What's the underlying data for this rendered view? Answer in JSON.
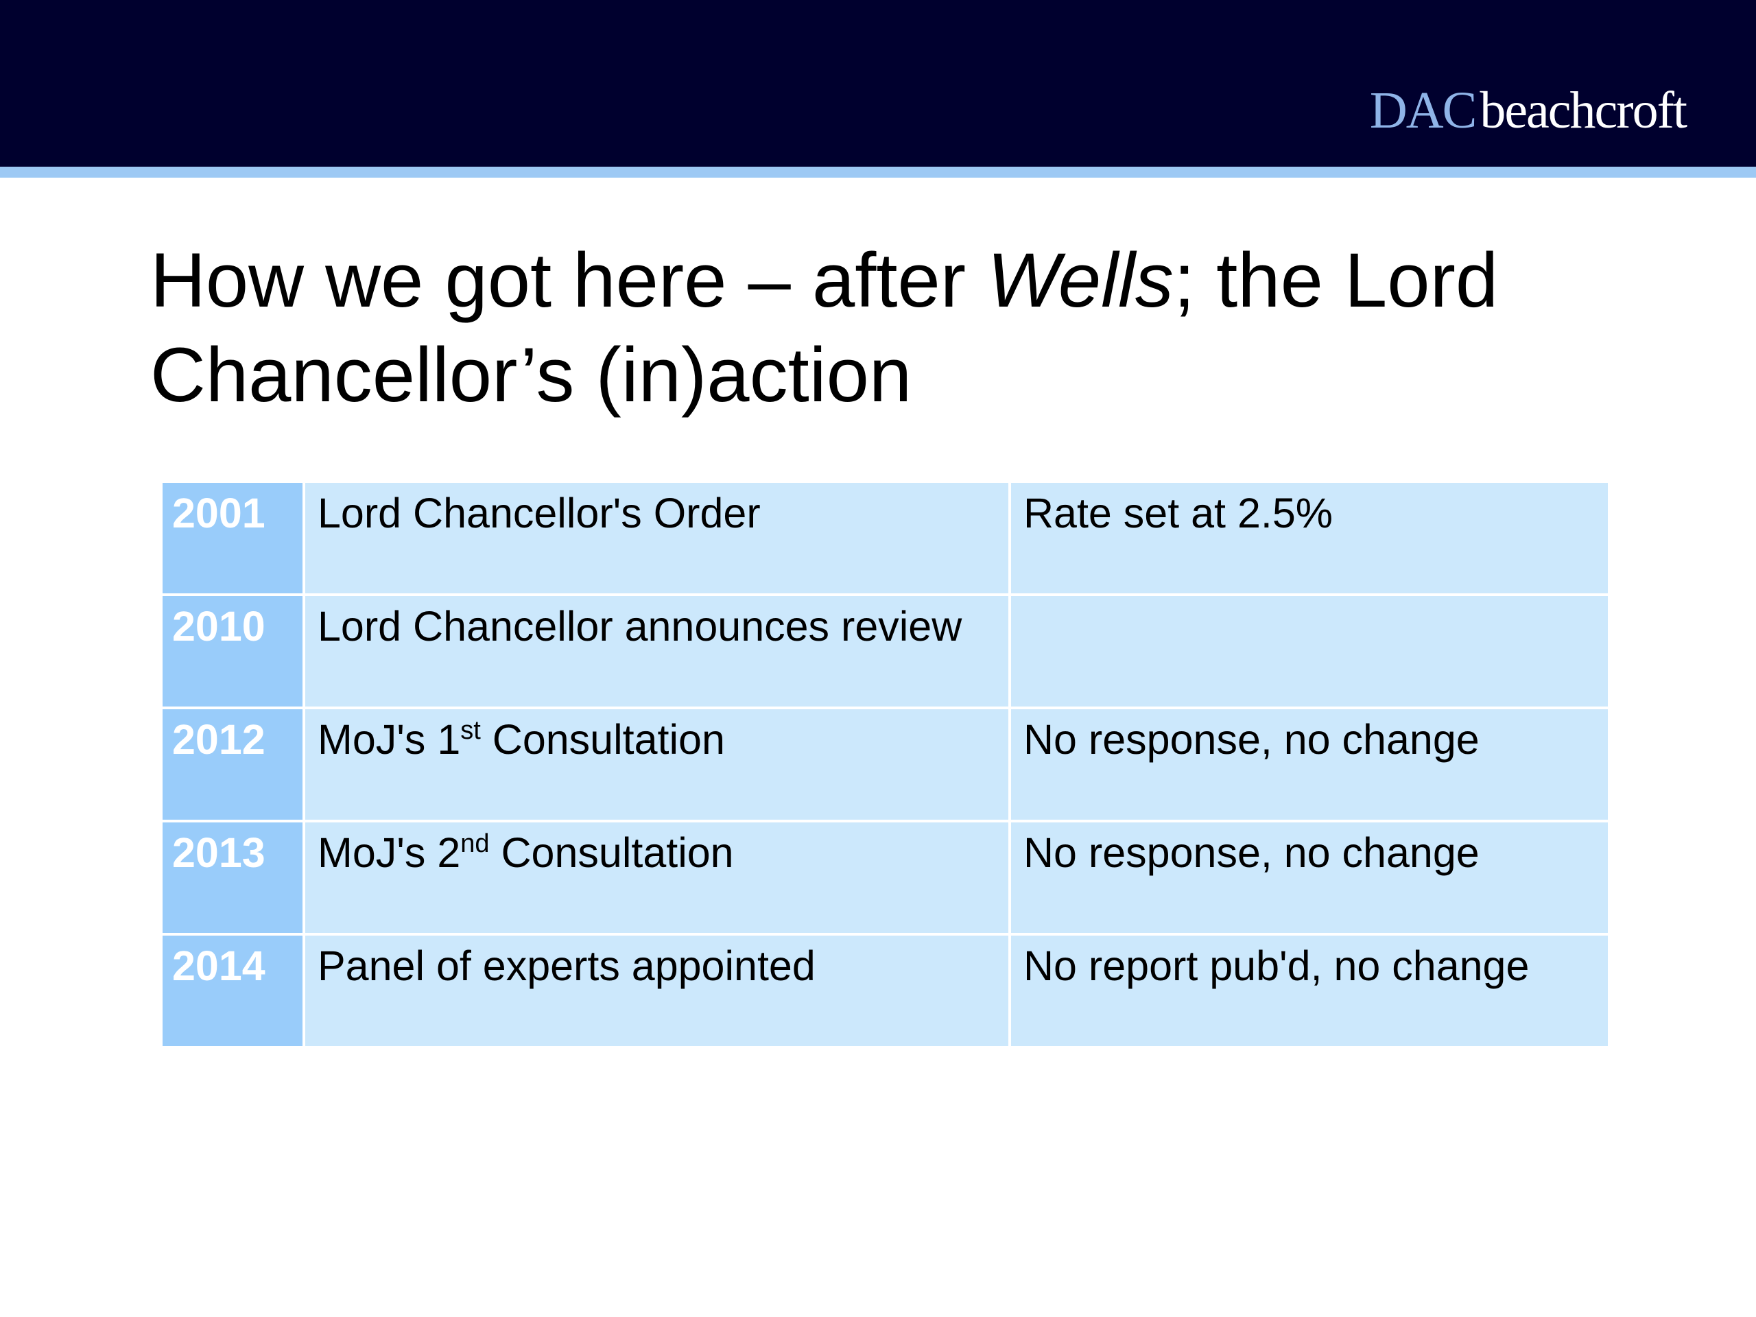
{
  "header": {
    "logo_part1": "DAC",
    "logo_part2": "beachcroft"
  },
  "title": {
    "line1_before": "How we got here – after ",
    "line1_italic": "Wells",
    "line1_after": "; the Lord",
    "line2": "Chancellor’s (in)action"
  },
  "timeline": [
    {
      "year": "2001",
      "event": "Lord Chancellor's Order",
      "event_sup": "",
      "event_after": "",
      "outcome": "Rate set at 2.5%"
    },
    {
      "year": "2010",
      "event": "Lord Chancellor announces review",
      "event_sup": "",
      "event_after": "",
      "outcome": ""
    },
    {
      "year": "2012",
      "event": "MoJ's 1",
      "event_sup": "st",
      "event_after": " Consultation",
      "outcome": "No response, no change"
    },
    {
      "year": "2013",
      "event": "MoJ's 2",
      "event_sup": "nd",
      "event_after": " Consultation",
      "outcome": "No response, no change"
    },
    {
      "year": "2014",
      "event": "Panel of experts appointed",
      "event_sup": "",
      "event_after": "",
      "outcome": "No report pub'd, no change"
    }
  ]
}
